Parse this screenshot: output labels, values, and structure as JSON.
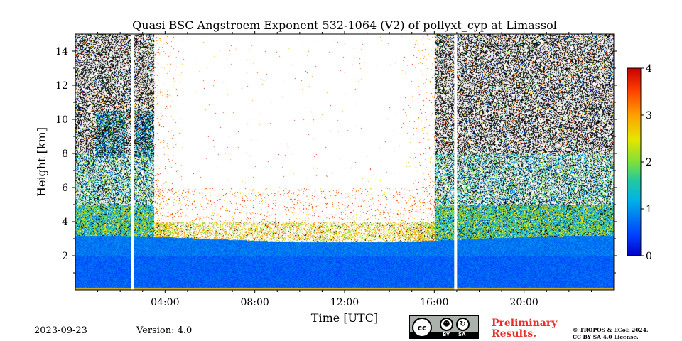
{
  "chart_data": {
    "type": "heatmap",
    "title": "Quasi BSC Angstroem Exponent 532-1064 (V2) of pollyxt_cyp at Limassol",
    "xlabel": "Time [UTC]",
    "ylabel": "Height [km]",
    "xlim_hours": [
      0,
      24
    ],
    "ylim_km": [
      0,
      15
    ],
    "x_ticks": [
      {
        "value": 4,
        "label": "04:00"
      },
      {
        "value": 8,
        "label": "08:00"
      },
      {
        "value": 12,
        "label": "12:00"
      },
      {
        "value": 16,
        "label": "16:00"
      },
      {
        "value": 20,
        "label": "20:00"
      }
    ],
    "y_ticks": [
      {
        "value": 2,
        "label": "2"
      },
      {
        "value": 4,
        "label": "4"
      },
      {
        "value": 6,
        "label": "6"
      },
      {
        "value": 8,
        "label": "8"
      },
      {
        "value": 10,
        "label": "10"
      },
      {
        "value": 12,
        "label": "12"
      },
      {
        "value": 14,
        "label": "14"
      }
    ],
    "colorbar": {
      "min": 0,
      "max": 4,
      "ticks": [
        {
          "value": 0,
          "label": "0"
        },
        {
          "value": 1,
          "label": "1"
        },
        {
          "value": 2,
          "label": "2"
        },
        {
          "value": 3,
          "label": "3"
        },
        {
          "value": 4,
          "label": "4"
        }
      ],
      "colormap": "jet"
    },
    "data_gaps_hours": [
      2.55,
      16.95
    ],
    "noise_region_top_km": 15,
    "boundary_layer_top_km": 3.0,
    "aerosol_layer_km": [
      3.0,
      4.5
    ],
    "day_blank_hours": [
      3.5,
      16.0
    ],
    "cloud_feature": {
      "hours": [
        0.9,
        3.5
      ],
      "height_km": [
        7.8,
        10.5
      ]
    },
    "bl_angstrom_mean": 0.8
  },
  "footer": {
    "date": "2023-09-23",
    "version": "Version: 4.0",
    "preliminary_line1": "Preliminary",
    "preliminary_line2": "Results.",
    "copyright_line1": "© TROPOS & ECoE 2024.",
    "copyright_line2": "CC BY SA 4.0 License.",
    "license_icons": [
      "cc-icon",
      "by-icon",
      "sa-icon"
    ],
    "license_labels": {
      "cc": "cc",
      "by": "BY",
      "sa": "SA"
    }
  },
  "colors": {
    "preliminary": "#e8302a",
    "background": "#ffffff"
  }
}
